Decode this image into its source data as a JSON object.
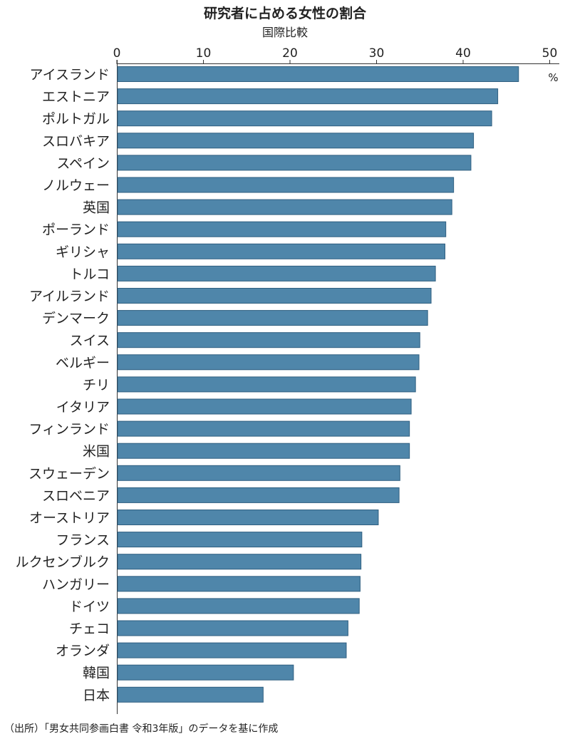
{
  "chart_data": {
    "type": "bar",
    "orientation": "horizontal",
    "title": "研究者に占める女性の割合",
    "subtitle": "国際比較",
    "unit": "%",
    "xlim": [
      0,
      52
    ],
    "xticks": [
      0,
      10,
      20,
      30,
      40,
      50
    ],
    "categories": [
      "アイスランド",
      "エストニア",
      "ポルトガル",
      "スロバキア",
      "スペイン",
      "ノルウェー",
      "英国",
      "ポーランド",
      "ギリシャ",
      "トルコ",
      "アイルランド",
      "デンマーク",
      "スイス",
      "ベルギー",
      "チリ",
      "イタリア",
      "フィンランド",
      "米国",
      "スウェーデン",
      "スロベニア",
      "オーストリア",
      "フランス",
      "ルクセンブルク",
      "ハンガリー",
      "ドイツ",
      "チェコ",
      "オランダ",
      "韓国",
      "日本"
    ],
    "values": [
      46.4,
      44.0,
      43.3,
      41.2,
      40.9,
      38.9,
      38.7,
      38.0,
      37.9,
      36.8,
      36.3,
      35.9,
      35.0,
      34.9,
      34.5,
      34.0,
      33.8,
      33.8,
      32.7,
      32.6,
      30.2,
      28.3,
      28.2,
      28.1,
      28.0,
      26.7,
      26.5,
      20.4,
      16.9
    ],
    "bar_color": "#4f86aa",
    "grid": false,
    "source": "（出所）「男女共同参画白書 令和3年版」のデータを基に作成"
  }
}
